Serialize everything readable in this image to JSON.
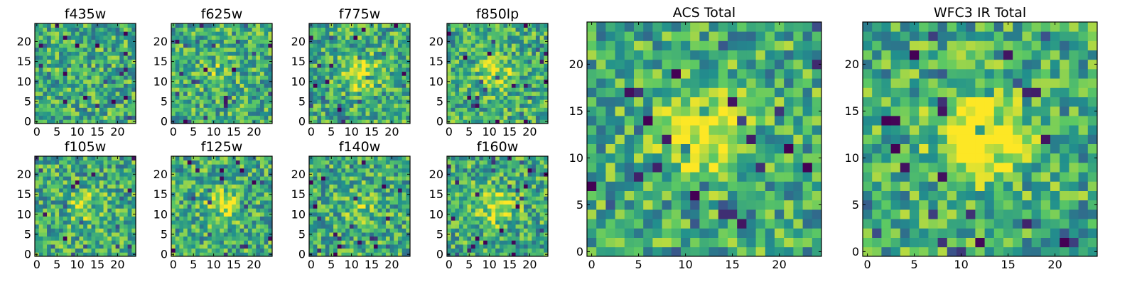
{
  "chart_data": {
    "type": "heatmap",
    "colormap": "viridis",
    "colormap_stops": [
      "#440154",
      "#3b528b",
      "#21908d",
      "#5dc963",
      "#fde725"
    ],
    "grid_size": [
      25,
      25
    ],
    "x_range": [
      0,
      24
    ],
    "y_range": [
      0,
      24
    ],
    "origin": "lower",
    "panels": [
      {
        "id": "f435w",
        "title": "f435w",
        "size": "small",
        "center_brightness": 0.0,
        "xticks": [
          "0",
          "5",
          "10",
          "15",
          "20"
        ],
        "yticks": [
          "0",
          "5",
          "10",
          "15",
          "20"
        ]
      },
      {
        "id": "f625w",
        "title": "f625w",
        "size": "small",
        "center_brightness": 0.15,
        "xticks": [
          "0",
          "5",
          "10",
          "15",
          "20"
        ],
        "yticks": [
          "0",
          "5",
          "10",
          "15",
          "20"
        ]
      },
      {
        "id": "f775w",
        "title": "f775w",
        "size": "small",
        "center_brightness": 0.35,
        "xticks": [
          "0",
          "5",
          "10",
          "15",
          "20"
        ],
        "yticks": [
          "0",
          "5",
          "10",
          "15",
          "20"
        ]
      },
      {
        "id": "f850lp",
        "title": "f850lp",
        "size": "small",
        "center_brightness": 0.3,
        "xticks": [
          "0",
          "5",
          "10",
          "15",
          "20"
        ],
        "yticks": [
          "0",
          "5",
          "10",
          "15",
          "20"
        ]
      },
      {
        "id": "acs_total",
        "title": "ACS Total",
        "size": "large",
        "center_brightness": 0.45,
        "xticks": [
          "0",
          "5",
          "10",
          "15",
          "20"
        ],
        "yticks": [
          "0",
          "5",
          "10",
          "15",
          "20"
        ]
      },
      {
        "id": "wfc3_ir_total",
        "title": "WFC3 IR Total",
        "size": "large",
        "center_brightness": 0.55,
        "xticks": [
          "0",
          "5",
          "10",
          "15",
          "20"
        ],
        "yticks": [
          "0",
          "5",
          "10",
          "15",
          "20"
        ]
      },
      {
        "id": "f105w",
        "title": "f105w",
        "size": "small",
        "center_brightness": 0.2,
        "xticks": [
          "0",
          "5",
          "10",
          "15",
          "20"
        ],
        "yticks": [
          "0",
          "5",
          "10",
          "15",
          "20"
        ]
      },
      {
        "id": "f125w",
        "title": "f125w",
        "size": "small",
        "center_brightness": 0.3,
        "xticks": [
          "0",
          "5",
          "10",
          "15",
          "20"
        ],
        "yticks": [
          "0",
          "5",
          "10",
          "15",
          "20"
        ]
      },
      {
        "id": "f140w",
        "title": "f140w",
        "size": "small",
        "center_brightness": 0.15,
        "xticks": [
          "0",
          "5",
          "10",
          "15",
          "20"
        ],
        "yticks": [
          "0",
          "5",
          "10",
          "15",
          "20"
        ]
      },
      {
        "id": "f160w",
        "title": "f160w",
        "size": "small",
        "center_brightness": 0.35,
        "xticks": [
          "0",
          "5",
          "10",
          "15",
          "20"
        ],
        "yticks": [
          "0",
          "5",
          "10",
          "15",
          "20"
        ]
      }
    ]
  }
}
